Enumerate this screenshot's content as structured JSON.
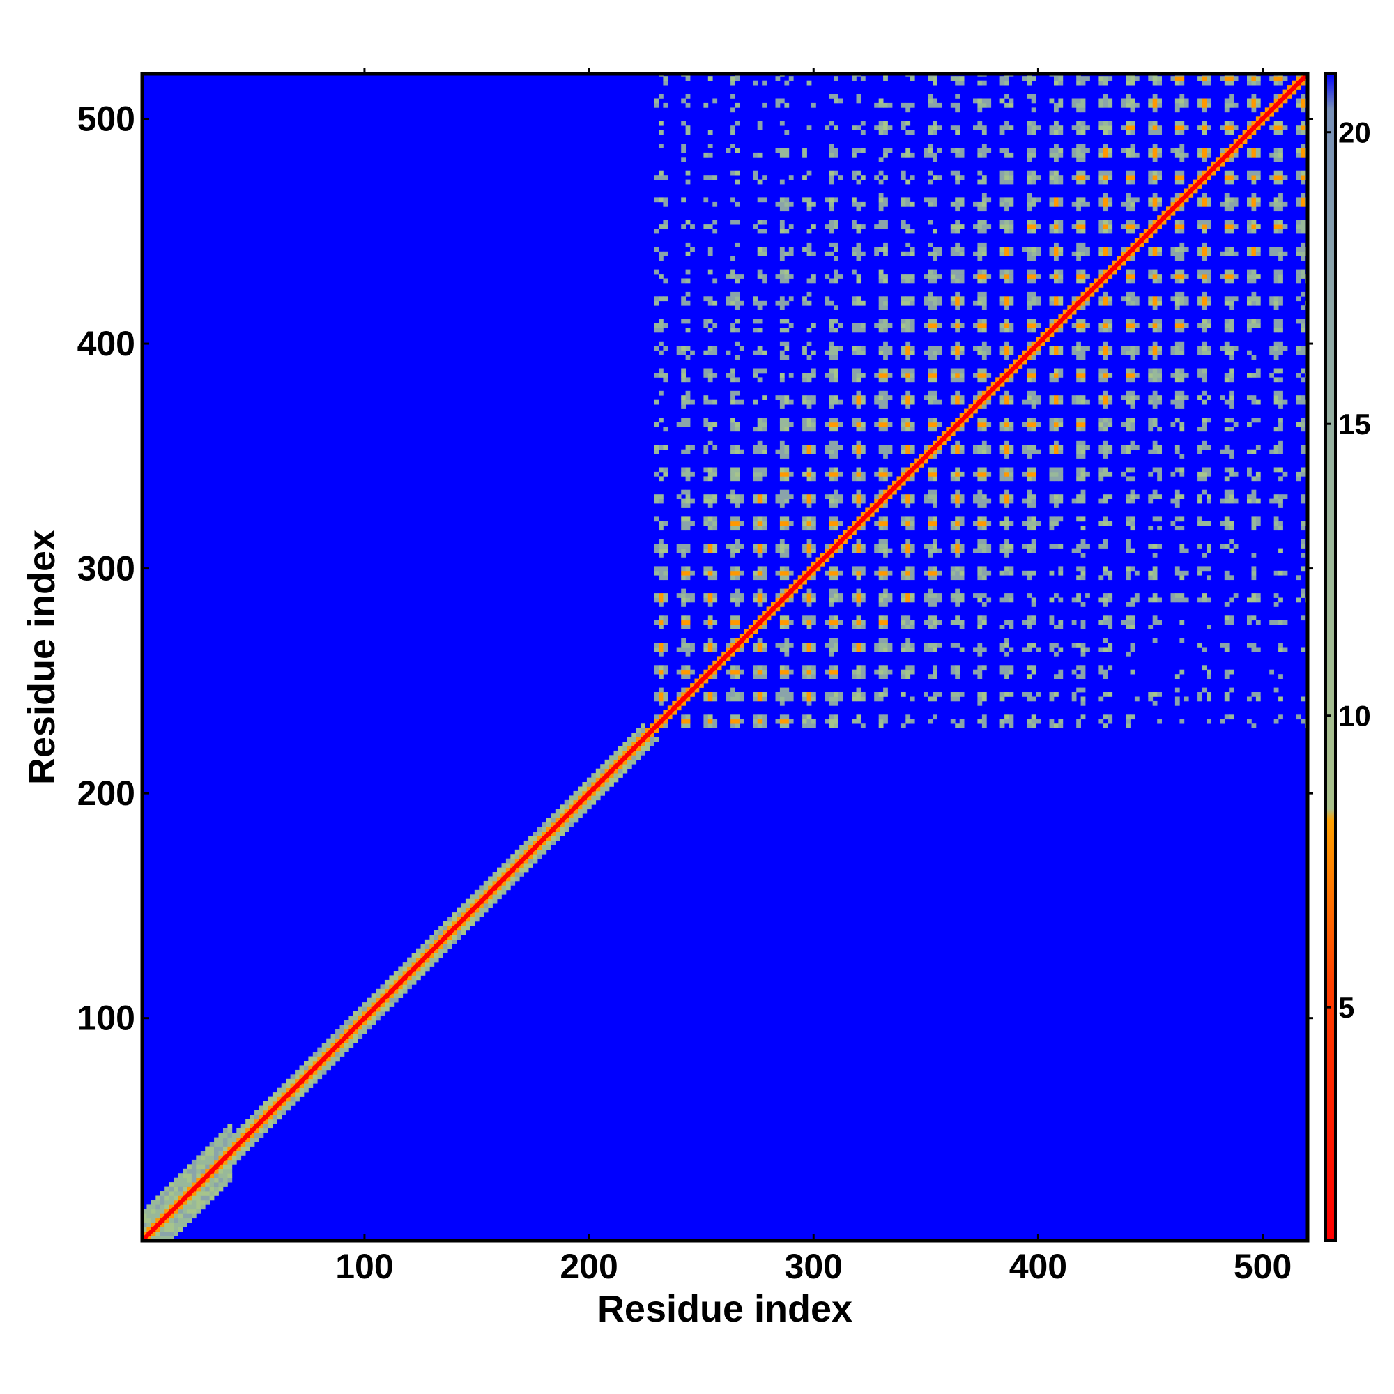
{
  "chart_data": {
    "type": "heatmap",
    "title": "",
    "xlabel": "Residue index",
    "ylabel": "Residue index",
    "xlim": [
      1,
      520
    ],
    "ylim": [
      1,
      520
    ],
    "xticks": [
      "100",
      "200",
      "300",
      "400",
      "500"
    ],
    "yticks": [
      "100",
      "200",
      "300",
      "400",
      "500"
    ],
    "x_tick_values": [
      100,
      200,
      300,
      400,
      500
    ],
    "y_tick_values": [
      100,
      200,
      300,
      400,
      500
    ],
    "colorbar": {
      "range": [
        1,
        21
      ],
      "ticks": [
        "5",
        "10",
        "15",
        "20"
      ],
      "tick_values": [
        5,
        10,
        15,
        20
      ],
      "colors": {
        "low": "#ff0000",
        "mid_low": "#ff8c00",
        "mid": "#8fbc8f",
        "high": "#8aa0b0",
        "background": "#0000ff"
      }
    },
    "structure": {
      "diagonal": "low distance (red) along full diagonal 1-520",
      "n_terminal_band_end": 225,
      "dense_domain_start": 225,
      "dense_domain_end": 520,
      "background_value": 21
    }
  }
}
